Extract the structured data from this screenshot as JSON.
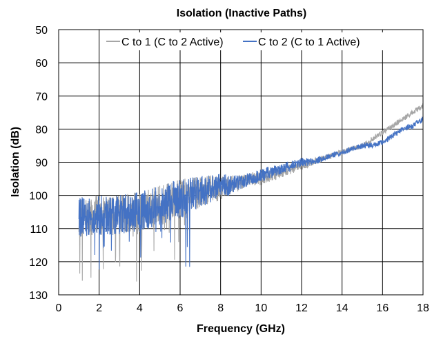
{
  "chart_data": {
    "type": "line",
    "title": "Isolation (Inactive Paths)",
    "xlabel": "Frequency (GHz)",
    "ylabel": "Isolation (dB)",
    "xlim": [
      0,
      18
    ],
    "ylim": [
      50,
      130
    ],
    "y_inverted": true,
    "x_ticks": [
      0,
      2,
      4,
      6,
      8,
      10,
      12,
      14,
      16,
      18
    ],
    "y_ticks": [
      50,
      60,
      70,
      80,
      90,
      100,
      110,
      120,
      130
    ],
    "grid": true,
    "legend_position": "top-right",
    "series": [
      {
        "name": "C to 1 (C to 2 Active)",
        "color": "#a6a6a6",
        "x": [
          1.0,
          1.2,
          1.4,
          1.6,
          1.8,
          2.0,
          2.5,
          3.0,
          3.5,
          4.0,
          4.5,
          5.0,
          5.5,
          6.0,
          6.5,
          7.0,
          7.5,
          8.0,
          8.5,
          9.0,
          9.5,
          10.0,
          10.5,
          11.0,
          11.5,
          12.0,
          12.5,
          13.0,
          13.5,
          14.0,
          14.5,
          15.0,
          15.5,
          16.0,
          16.5,
          17.0,
          17.5,
          18.0
        ],
        "values": [
          107,
          106,
          106,
          107,
          106,
          106,
          106,
          106,
          105,
          105,
          104,
          103,
          102,
          101,
          100,
          99,
          98,
          98,
          97,
          96,
          95,
          95,
          94,
          93,
          92,
          91,
          90,
          89,
          88,
          87,
          86,
          85,
          83,
          81,
          79,
          77,
          75,
          73
        ]
      },
      {
        "name": "C to 2 (C to 1 Active)",
        "color": "#4472c4",
        "x": [
          1.0,
          1.2,
          1.4,
          1.6,
          1.8,
          2.0,
          2.5,
          3.0,
          3.5,
          4.0,
          4.5,
          5.0,
          5.5,
          6.0,
          6.5,
          7.0,
          7.5,
          8.0,
          8.5,
          9.0,
          9.5,
          10.0,
          10.5,
          11.0,
          11.5,
          12.0,
          12.5,
          13.0,
          13.5,
          14.0,
          14.5,
          15.0,
          15.5,
          16.0,
          16.5,
          17.0,
          17.5,
          18.0
        ],
        "values": [
          107,
          106,
          106,
          107,
          106,
          106,
          106,
          106,
          105,
          105,
          104,
          103,
          102,
          101,
          100,
          99,
          98,
          97,
          97,
          96,
          95,
          94,
          93,
          92,
          91,
          90,
          90,
          89,
          88,
          87,
          86,
          85,
          85,
          84,
          82,
          80,
          79,
          77
        ]
      }
    ]
  }
}
